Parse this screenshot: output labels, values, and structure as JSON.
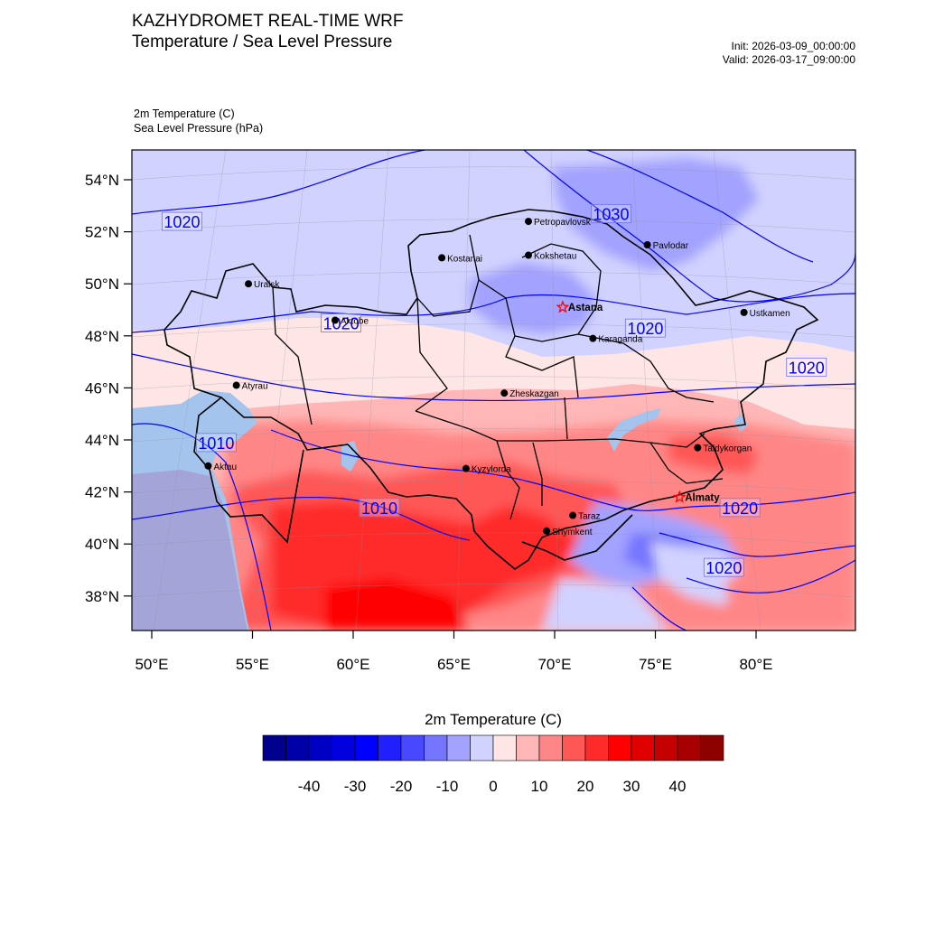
{
  "header": {
    "title_line1": "KAZHYDROMET REAL-TIME WRF",
    "title_line2": "Temperature / Sea Level Pressure",
    "init": "Init: 2026-03-09_00:00:00",
    "valid": "Valid: 2026-03-17_09:00:00",
    "field1": "2m Temperature   (C)",
    "field2": "Sea Level Pressure   (hPa)"
  },
  "axes": {
    "lat_labels": [
      "54°N",
      "52°N",
      "50°N",
      "48°N",
      "46°N",
      "44°N",
      "42°N",
      "40°N",
      "38°N"
    ],
    "lon_labels": [
      "50°E",
      "55°E",
      "60°E",
      "65°E",
      "70°E",
      "75°E",
      "80°E"
    ]
  },
  "cities": [
    {
      "name": "Petropavlovsk",
      "lon": 68.7,
      "lat": 52.4,
      "capital": false
    },
    {
      "name": "Kostanai",
      "lon": 64.4,
      "lat": 51.0,
      "capital": false
    },
    {
      "name": "Kokshetau",
      "lon": 68.7,
      "lat": 51.1,
      "capital": false
    },
    {
      "name": "Pavlodar",
      "lon": 74.6,
      "lat": 51.5,
      "capital": false
    },
    {
      "name": "Uralsk",
      "lon": 54.8,
      "lat": 50.0,
      "capital": false
    },
    {
      "name": "Aktobe",
      "lon": 59.1,
      "lat": 48.6,
      "capital": false
    },
    {
      "name": "Astana",
      "lon": 70.4,
      "lat": 49.1,
      "capital": true
    },
    {
      "name": "Ustkamen",
      "lon": 79.4,
      "lat": 48.9,
      "capital": false
    },
    {
      "name": "Karaganda",
      "lon": 71.9,
      "lat": 47.9,
      "capital": false
    },
    {
      "name": "Atyrau",
      "lon": 54.2,
      "lat": 46.1,
      "capital": false
    },
    {
      "name": "Zheskazgan",
      "lon": 67.5,
      "lat": 45.8,
      "capital": false
    },
    {
      "name": "Taldykorgan",
      "lon": 77.1,
      "lat": 43.7,
      "capital": false
    },
    {
      "name": "Aktau",
      "lon": 52.8,
      "lat": 43.0,
      "capital": false
    },
    {
      "name": "Kyzylorda",
      "lon": 65.6,
      "lat": 42.9,
      "capital": false
    },
    {
      "name": "Almaty",
      "lon": 76.2,
      "lat": 41.8,
      "capital": true
    },
    {
      "name": "Taraz",
      "lon": 70.9,
      "lat": 41.1,
      "capital": false
    },
    {
      "name": "Shymkent",
      "lon": 69.6,
      "lat": 40.5,
      "capital": false
    }
  ],
  "isobar_labels": [
    {
      "text": "1030",
      "lon": 72.8,
      "lat": 52.7
    },
    {
      "text": "1020",
      "lon": 51.5,
      "lat": 52.4
    },
    {
      "text": "1020",
      "lon": 59.4,
      "lat": 48.5
    },
    {
      "text": "1020",
      "lon": 74.5,
      "lat": 48.3
    },
    {
      "text": "1020",
      "lon": 82.5,
      "lat": 46.8
    },
    {
      "text": "1010",
      "lon": 53.2,
      "lat": 43.9
    },
    {
      "text": "1010",
      "lon": 61.3,
      "lat": 41.4
    },
    {
      "text": "1020",
      "lon": 79.2,
      "lat": 41.4
    },
    {
      "text": "1020",
      "lon": 78.4,
      "lat": 39.1
    }
  ],
  "colorbar": {
    "title": "2m Temperature  (C)",
    "labels": [
      "-40",
      "-30",
      "-20",
      "-10",
      "0",
      "10",
      "20",
      "30",
      "40"
    ],
    "colors": [
      "#00008c",
      "#0000a8",
      "#0000c4",
      "#0000e0",
      "#0000ff",
      "#2020ff",
      "#4848ff",
      "#7474ff",
      "#a2a2ff",
      "#d2d2ff",
      "#ffe6e6",
      "#ffb6b6",
      "#ff8686",
      "#ff5656",
      "#ff2a2a",
      "#ff0000",
      "#e00000",
      "#c40000",
      "#a80000",
      "#8c0000"
    ]
  },
  "colors": {
    "isobar": "#0000ff",
    "border": "#000000"
  }
}
